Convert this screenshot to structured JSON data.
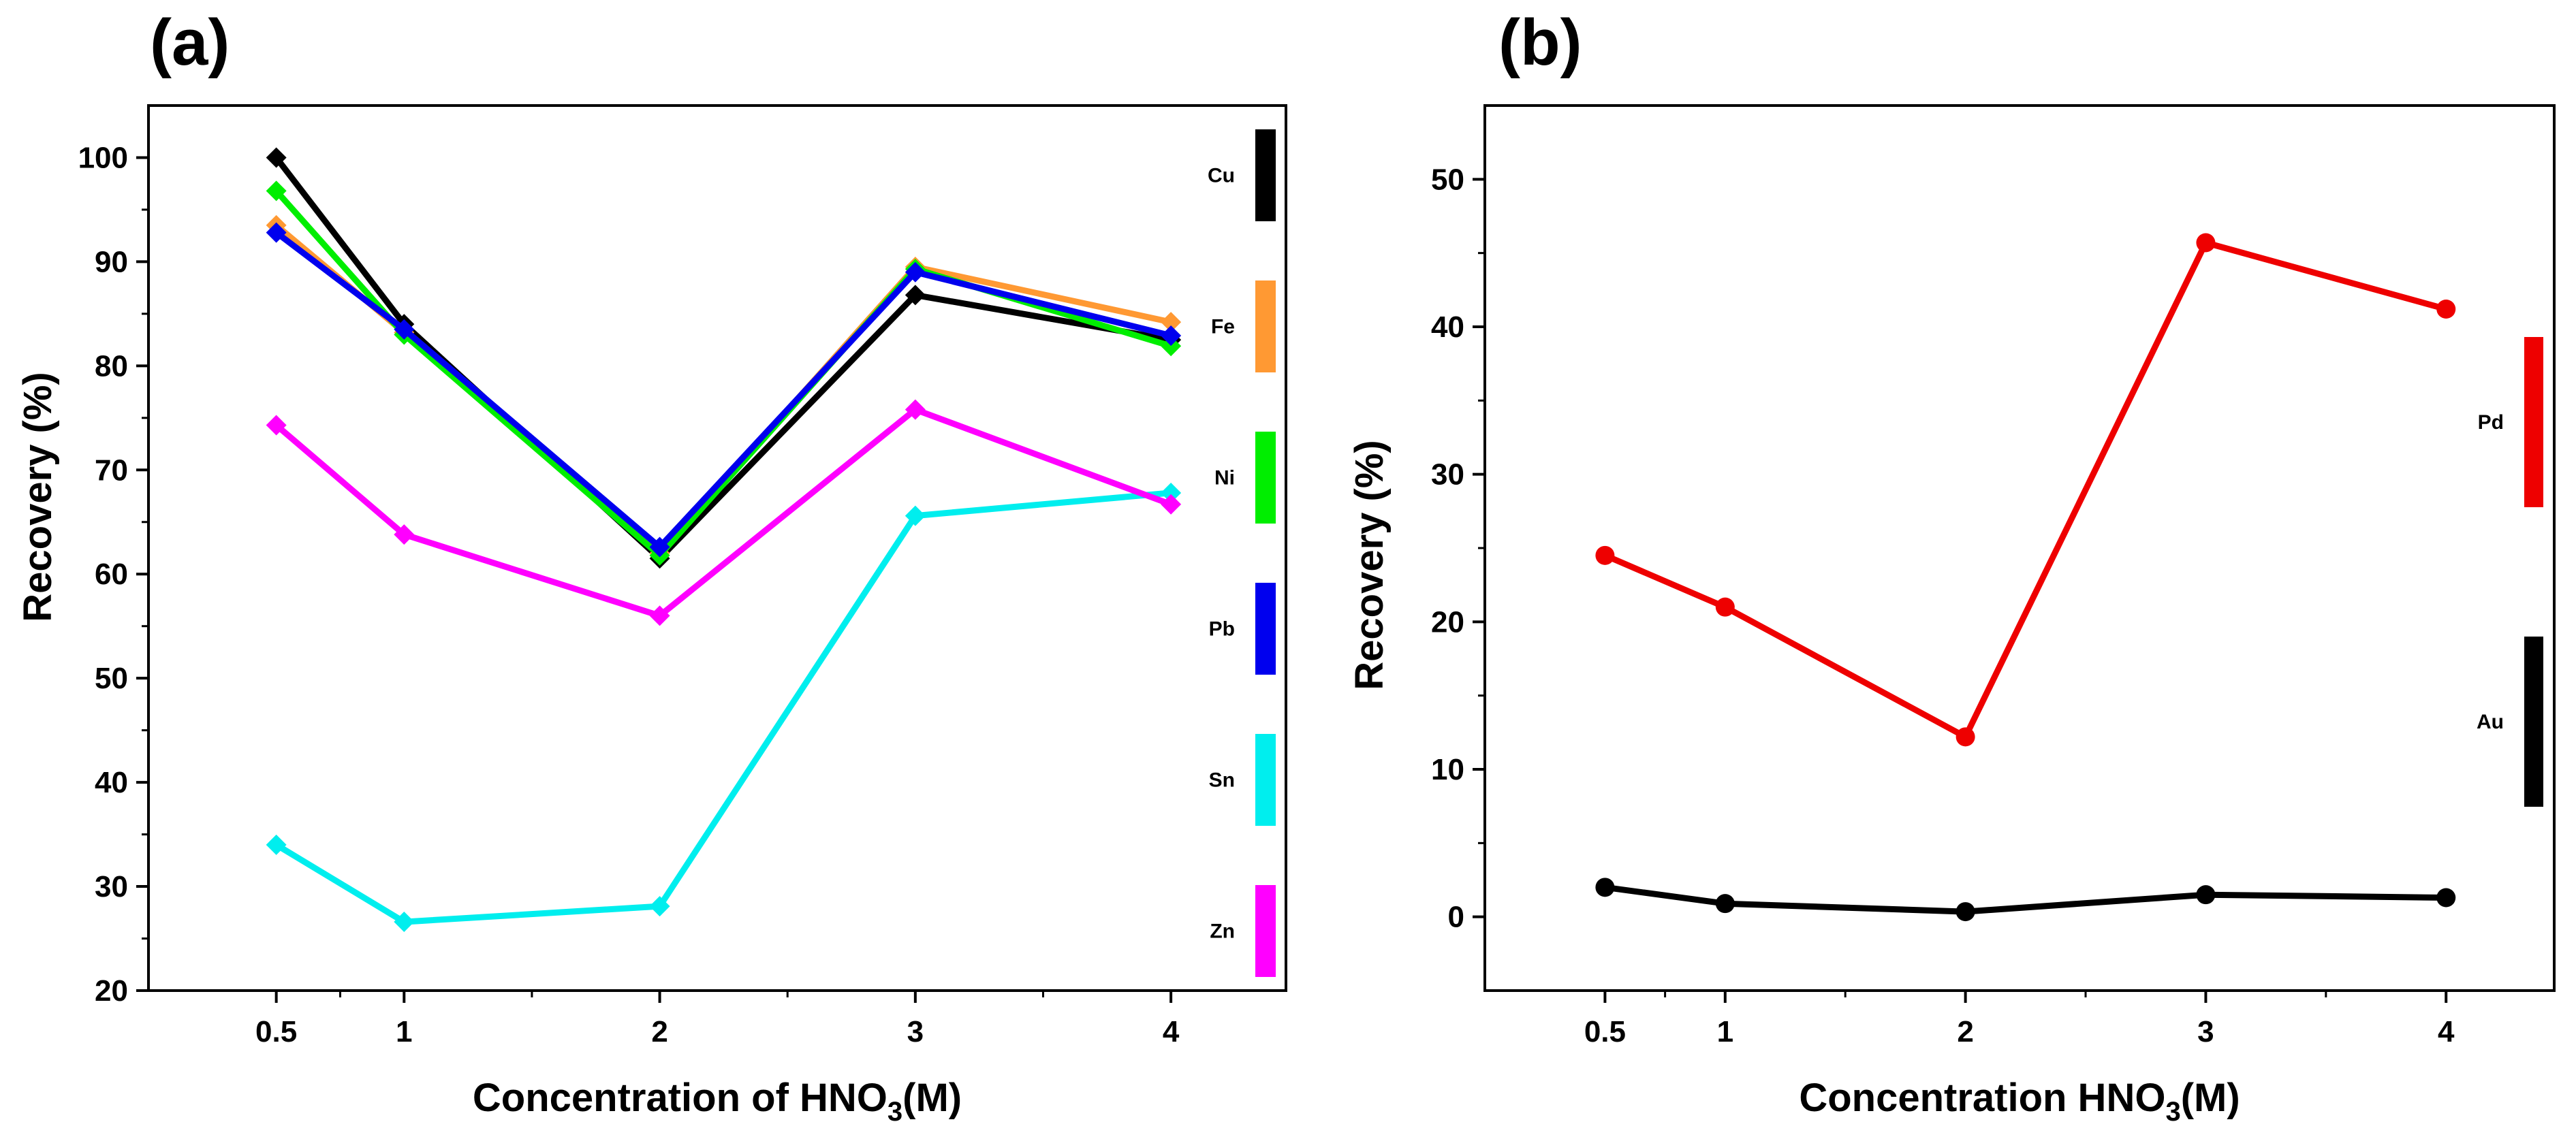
{
  "chart_data": [
    {
      "type": "line",
      "panel": "(a)",
      "xlabel_main": "Concentration of HNO",
      "xlabel_sub": "3",
      "xlabel_tail": "(M)",
      "ylabel": "Recovery (%)",
      "x": [
        0.5,
        1,
        2,
        3,
        4
      ],
      "x_ticks": [
        "0.5",
        "1",
        "2",
        "3",
        "4"
      ],
      "xlim": [
        0,
        4.45
      ],
      "ylim": [
        20,
        105
      ],
      "y_ticks": [
        20,
        30,
        40,
        50,
        60,
        70,
        80,
        90,
        100
      ],
      "marker": "diamond",
      "legend_position": "right",
      "series": [
        {
          "name": "Cu",
          "color": "#000000",
          "values": [
            100,
            84,
            61.5,
            86.8,
            82.5
          ]
        },
        {
          "name": "Fe",
          "color": "#FF9933",
          "values": [
            93.5,
            83.2,
            62,
            89.5,
            84.2
          ]
        },
        {
          "name": "Ni",
          "color": "#00EE00",
          "values": [
            96.8,
            83,
            61.8,
            89.3,
            81.9
          ]
        },
        {
          "name": "Pb",
          "color": "#0000EE",
          "values": [
            92.8,
            83.5,
            62.6,
            89,
            82.9
          ]
        },
        {
          "name": "Sn",
          "color": "#00EEEE",
          "values": [
            34,
            26.6,
            28.1,
            65.6,
            67.8
          ]
        },
        {
          "name": "Zn",
          "color": "#FF00FF",
          "values": [
            74.3,
            63.8,
            56,
            75.8,
            66.7
          ]
        }
      ]
    },
    {
      "type": "line",
      "panel": "(b)",
      "xlabel_main": "Concentration HNO",
      "xlabel_sub": "3",
      "xlabel_tail": "(M)",
      "ylabel": "Recovery (%)",
      "x": [
        0.5,
        1,
        2,
        3,
        4
      ],
      "x_ticks": [
        "0.5",
        "1",
        "2",
        "3",
        "4"
      ],
      "xlim": [
        0,
        4.45
      ],
      "ylim": [
        -5,
        55
      ],
      "y_ticks": [
        0,
        10,
        20,
        30,
        40,
        50
      ],
      "marker": "circle",
      "legend_position": "right",
      "series": [
        {
          "name": "Pd",
          "color": "#EE0000",
          "values": [
            24.5,
            21,
            12.2,
            45.7,
            41.2
          ]
        },
        {
          "name": "Au",
          "color": "#000000",
          "values": [
            2,
            0.9,
            0.35,
            1.5,
            1.3
          ]
        }
      ]
    }
  ]
}
